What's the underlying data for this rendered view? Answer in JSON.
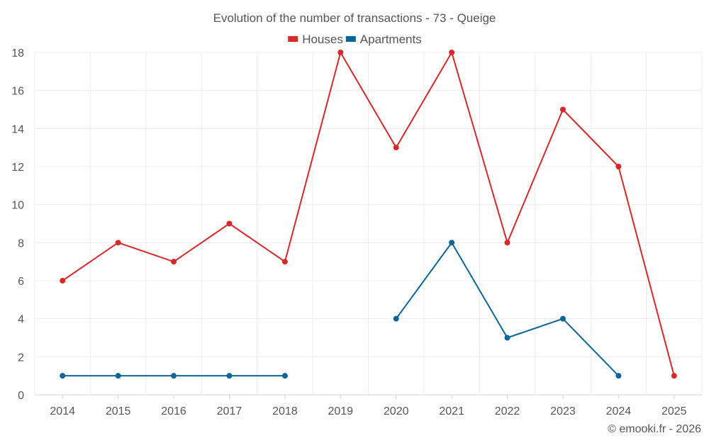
{
  "chart_data": {
    "type": "line",
    "title": "Evolution of the number of transactions - 73 - Queige",
    "categories": [
      "2014",
      "2015",
      "2016",
      "2017",
      "2018",
      "2019",
      "2020",
      "2021",
      "2022",
      "2023",
      "2024",
      "2025"
    ],
    "ylim": [
      0,
      18
    ],
    "yticks": [
      0,
      2,
      4,
      6,
      8,
      10,
      12,
      14,
      16,
      18
    ],
    "grid": true,
    "legend_position": "top-center",
    "series": [
      {
        "name": "Houses",
        "color": "#d62a2a",
        "values": [
          6,
          8,
          7,
          9,
          7,
          18,
          13,
          18,
          8,
          15,
          12,
          1
        ]
      },
      {
        "name": "Apartments",
        "color": "#0a6699",
        "values": [
          1,
          1,
          1,
          1,
          1,
          null,
          4,
          8,
          3,
          4,
          1,
          null
        ]
      }
    ],
    "credit": "© emooki.fr - 2026"
  }
}
